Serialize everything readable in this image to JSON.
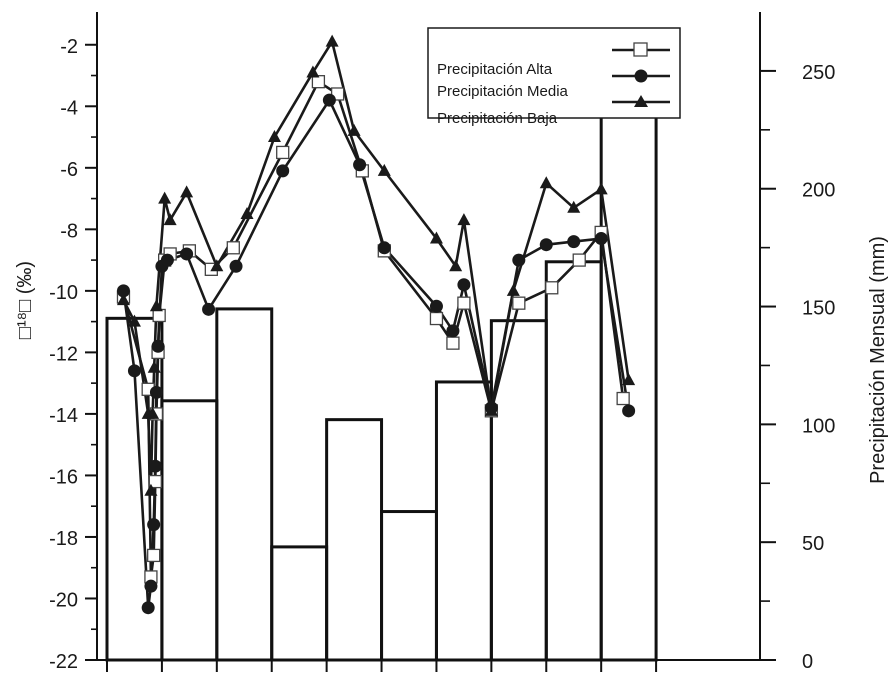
{
  "chart_data": {
    "type": "bar",
    "left_axis": {
      "label": "□¹⁸□ (‰)",
      "range": [
        -22,
        -1
      ],
      "tick_labels": [
        "-2",
        "-4",
        "-6",
        "-8",
        "-10",
        "-12",
        "-14",
        "-16",
        "-18",
        "-20",
        "-22"
      ],
      "tick_values": [
        -2,
        -4,
        -6,
        -8,
        -10,
        -12,
        -14,
        -16,
        -18,
        -20,
        -22
      ]
    },
    "right_axis": {
      "label": "Precipitación Mensual (mm)",
      "range": [
        0,
        275
      ],
      "tick_labels": [
        "250",
        "200",
        "150",
        "100",
        "50",
        "0"
      ],
      "tick_values": [
        250,
        200,
        150,
        100,
        50,
        0
      ],
      "minor_ticks": [
        25,
        75,
        125,
        175,
        225
      ]
    },
    "x_axis": {
      "tick_count": 11,
      "range": [
        0,
        11
      ]
    },
    "bars": {
      "name": "Precipitación mensual",
      "axis": "right",
      "x_start": [
        0,
        1,
        2,
        3,
        4,
        5,
        6,
        7,
        8,
        9
      ],
      "x_end": [
        1,
        2,
        3,
        4,
        5,
        6,
        7,
        8,
        9,
        10
      ],
      "values": [
        145,
        110,
        149,
        48,
        102,
        63,
        118,
        144,
        169,
        235
      ]
    },
    "series": [
      {
        "name": "Precipitación Alta",
        "marker": "square-open",
        "x": [
          0.3,
          0.75,
          0.8,
          0.85,
          0.88,
          0.9,
          0.93,
          0.95,
          1.05,
          1.15,
          1.5,
          1.9,
          2.3,
          3.2,
          3.85,
          4.2,
          4.65,
          5.05,
          6.0,
          6.3,
          6.5,
          7.0,
          7.5,
          8.1,
          8.6,
          9.0,
          9.4
        ],
        "y": [
          -10.2,
          -13.2,
          -19.3,
          -18.6,
          -16.2,
          -14.0,
          -12.0,
          -10.8,
          -9.0,
          -8.8,
          -8.7,
          -9.3,
          -8.6,
          -5.5,
          -3.2,
          -3.6,
          -6.1,
          -8.7,
          -10.9,
          -11.7,
          -10.4,
          -13.9,
          -10.4,
          -9.9,
          -9.0,
          -8.1,
          -13.5
        ]
      },
      {
        "name": "Precipitación Media",
        "marker": "circle-filled",
        "x": [
          0.3,
          0.5,
          0.75,
          0.8,
          0.85,
          0.88,
          0.9,
          0.93,
          1.0,
          1.1,
          1.45,
          1.85,
          2.35,
          3.2,
          4.05,
          4.6,
          5.05,
          6.0,
          6.3,
          6.5,
          7.0,
          7.5,
          8.0,
          8.5,
          9.0,
          9.5
        ],
        "y": [
          -10.0,
          -12.6,
          -20.3,
          -19.6,
          -17.6,
          -15.7,
          -13.3,
          -11.8,
          -9.2,
          -9.0,
          -8.8,
          -10.6,
          -9.2,
          -6.1,
          -3.8,
          -5.9,
          -8.6,
          -10.5,
          -11.3,
          -9.8,
          -13.8,
          -9.0,
          -8.5,
          -8.4,
          -8.3,
          -13.9
        ]
      },
      {
        "name": "Precipitación Baja",
        "marker": "triangle-filled",
        "x": [
          0.3,
          0.5,
          0.75,
          0.8,
          0.83,
          0.86,
          0.9,
          1.05,
          1.15,
          1.45,
          2.0,
          2.55,
          3.05,
          3.75,
          4.1,
          4.5,
          5.05,
          6.0,
          6.35,
          6.5,
          7.0,
          7.4,
          8.0,
          8.5,
          9.0,
          9.5
        ],
        "y": [
          -10.3,
          -11.0,
          -14.0,
          -16.5,
          -14.0,
          -12.5,
          -10.5,
          -7.0,
          -7.7,
          -6.8,
          -9.2,
          -7.5,
          -5.0,
          -2.9,
          -1.9,
          -4.8,
          -6.1,
          -8.3,
          -9.2,
          -7.7,
          -13.9,
          -10.0,
          -6.5,
          -7.3,
          -6.7,
          -12.9
        ]
      }
    ],
    "legend": {
      "placement": "top-right",
      "entries": [
        "Precipitación Alta",
        "Precipitación Media",
        "Precipitación Baja"
      ]
    },
    "grid": false
  }
}
